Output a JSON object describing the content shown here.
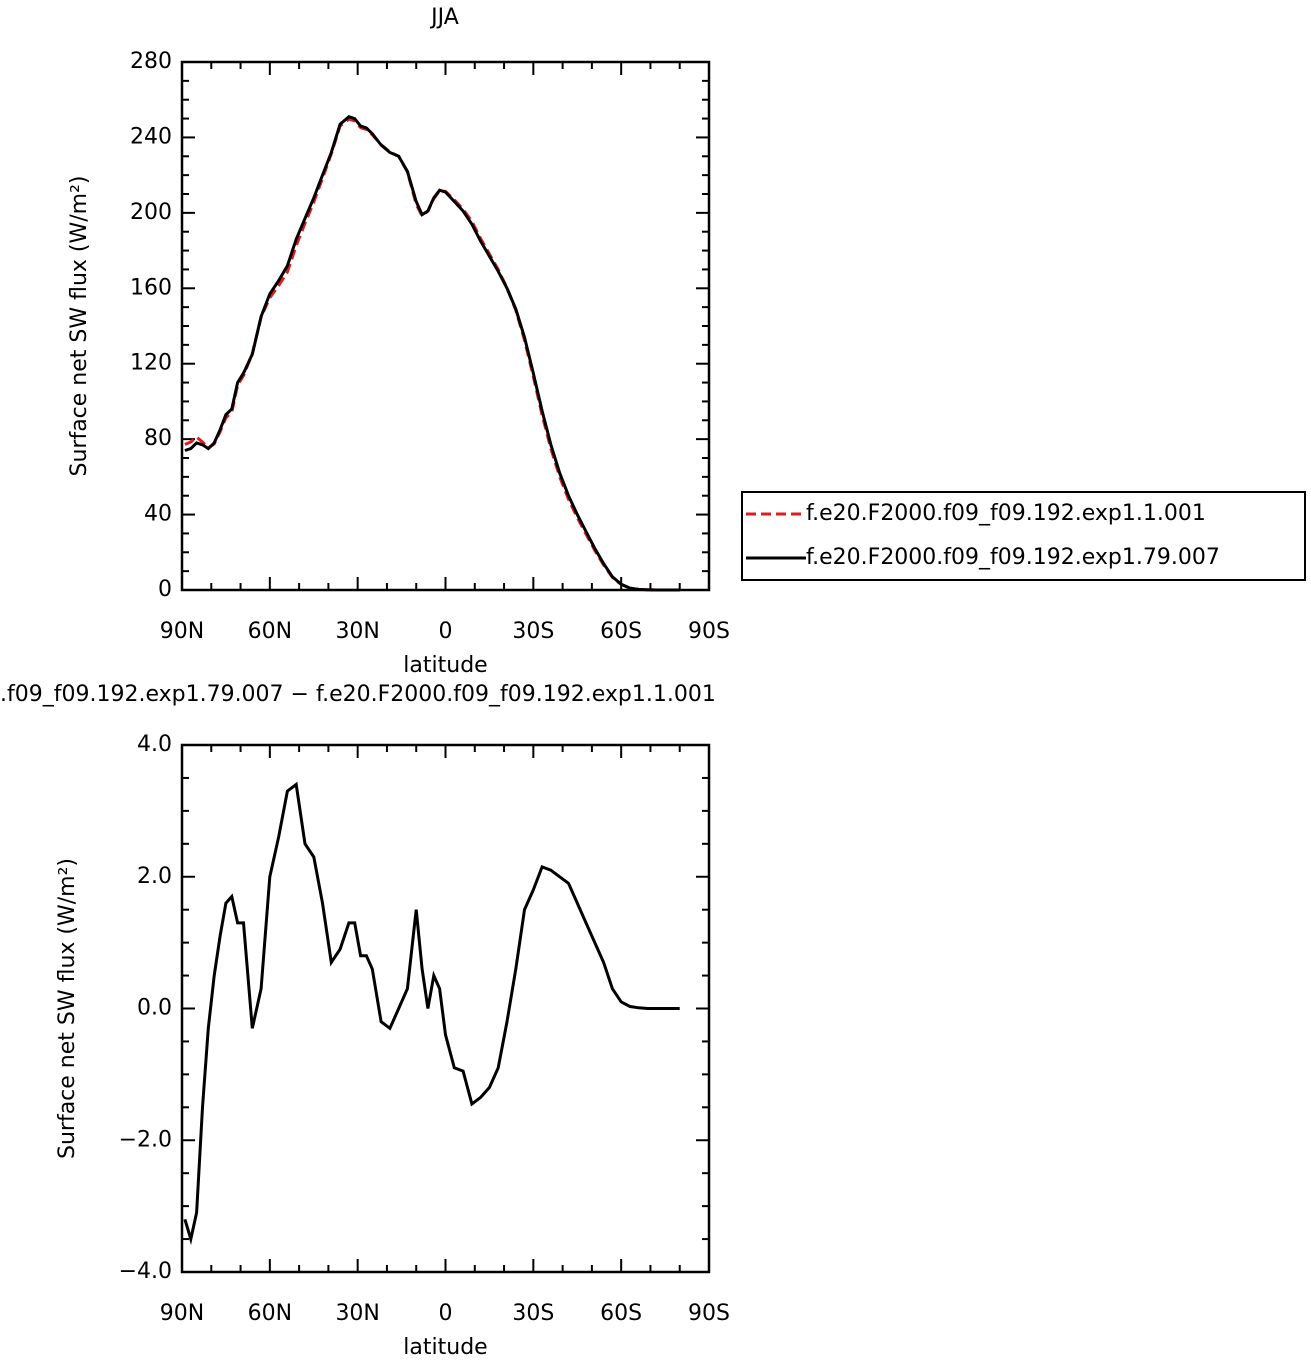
{
  "chart_data": [
    {
      "type": "line",
      "title": "JJA",
      "xlabel": "latitude",
      "ylabel": "Surface net SW flux (W/m²)",
      "x": [
        89,
        87,
        85,
        83,
        81,
        79,
        77,
        75,
        73,
        71,
        69,
        66,
        63,
        60,
        57,
        54,
        51,
        48,
        45,
        42,
        39,
        36,
        33,
        31,
        29,
        27,
        25,
        22,
        19,
        16,
        13,
        10,
        8,
        6,
        4,
        2,
        0,
        -3,
        -6,
        -9,
        -12,
        -15,
        -18,
        -21,
        -24,
        -27,
        -30,
        -33,
        -36,
        -39,
        -42,
        -45,
        -48,
        -51,
        -54,
        -57,
        -60,
        -63,
        -66,
        -69,
        -72,
        -75,
        -78,
        -80
      ],
      "series": [
        {
          "name": "f.e20.F2000.f09_f09.192.exp1.1.001",
          "color": "#e41a1c",
          "dash": true,
          "values": [
            77.2,
            78.5,
            81.1,
            78.5,
            75.3,
            77.5,
            83.9,
            91.4,
            94.3,
            108.7,
            113.7,
            125.3,
            144.7,
            155,
            161.4,
            168.7,
            182.6,
            194.5,
            205.7,
            218.4,
            231.3,
            246.1,
            249.7,
            248.7,
            245.2,
            244.2,
            241.4,
            236.2,
            232.3,
            230,
            221.7,
            204.5,
            198.4,
            201,
            207.5,
            211.7,
            211.4,
            206.9,
            201.95,
            195.45,
            186.35,
            178.2,
            169.9,
            160.2,
            148.4,
            132.5,
            113.2,
            92.85,
            74.9,
            60,
            48.1,
            38.4,
            29.7,
            21,
            13.3,
            6.7,
            2.9,
            0.97,
            0.29,
            0.1,
            0,
            0,
            0,
            0
          ]
        },
        {
          "name": "f.e20.F2000.f09_f09.192.exp1.79.007",
          "color": "#000000",
          "dash": false,
          "values": [
            74,
            75,
            78,
            77,
            75,
            78,
            85,
            93,
            96,
            110,
            115,
            125,
            145,
            157,
            164,
            172,
            186,
            197,
            208,
            220,
            232,
            247,
            251,
            250,
            246,
            245,
            242,
            236,
            232,
            230,
            222,
            206,
            199,
            201,
            208,
            212,
            211,
            206,
            201,
            194,
            185,
            177,
            169,
            160,
            149,
            134,
            115,
            95,
            77,
            62,
            50,
            40,
            31,
            22,
            14,
            7,
            3,
            1,
            0.3,
            0.1,
            0,
            0,
            0,
            0
          ]
        }
      ],
      "xlim": [
        90,
        -90
      ],
      "xticks": [
        {
          "value": 90,
          "label": "90N"
        },
        {
          "value": 60,
          "label": "60N"
        },
        {
          "value": 30,
          "label": "30N"
        },
        0,
        {
          "value": -30,
          "label": "30S"
        },
        {
          "value": -60,
          "label": "60S"
        },
        {
          "value": -90,
          "label": "90S"
        }
      ],
      "ylim": [
        0,
        280
      ],
      "yticks": [
        0,
        40,
        80,
        120,
        160,
        200,
        240,
        280
      ],
      "legend": "right"
    },
    {
      "type": "line",
      "title": ".f09_f09.192.exp1.79.007 − f.e20.F2000.f09_f09.192.exp1.1.001",
      "xlabel": "latitude",
      "ylabel": "Surface net SW flux (W/m²)",
      "x": [
        89,
        87,
        85,
        83,
        81,
        79,
        77,
        75,
        73,
        71,
        69,
        66,
        63,
        60,
        57,
        54,
        51,
        48,
        45,
        42,
        39,
        36,
        33,
        31,
        29,
        27,
        25,
        22,
        19,
        16,
        13,
        10,
        8,
        6,
        4,
        2,
        0,
        -3,
        -6,
        -9,
        -12,
        -15,
        -18,
        -21,
        -24,
        -27,
        -30,
        -33,
        -36,
        -39,
        -42,
        -45,
        -48,
        -51,
        -54,
        -57,
        -60,
        -63,
        -66,
        -69,
        -72,
        -75,
        -78,
        -80
      ],
      "color": "#000000",
      "values": [
        -3.2,
        -3.5,
        -3.1,
        -1.5,
        -0.3,
        0.5,
        1.1,
        1.6,
        1.7,
        1.3,
        1.3,
        -0.3,
        0.3,
        2.0,
        2.6,
        3.3,
        3.4,
        2.5,
        2.3,
        1.6,
        0.7,
        0.9,
        1.3,
        1.3,
        0.8,
        0.8,
        0.6,
        -0.2,
        -0.3,
        0.0,
        0.3,
        1.5,
        0.6,
        0.0,
        0.5,
        0.3,
        -0.4,
        -0.9,
        -0.95,
        -1.45,
        -1.35,
        -1.2,
        -0.9,
        -0.2,
        0.6,
        1.5,
        1.8,
        2.15,
        2.1,
        2.0,
        1.9,
        1.6,
        1.3,
        1.0,
        0.7,
        0.3,
        0.1,
        0.03,
        0.01,
        0,
        0,
        0,
        0,
        0
      ],
      "xlim": [
        90,
        -90
      ],
      "xticks": [
        {
          "value": 90,
          "label": "90N"
        },
        {
          "value": 60,
          "label": "60N"
        },
        {
          "value": 30,
          "label": "30N"
        },
        0,
        {
          "value": -30,
          "label": "30S"
        },
        {
          "value": -60,
          "label": "60S"
        },
        {
          "value": -90,
          "label": "90S"
        }
      ],
      "ylim": [
        -4,
        4
      ],
      "yticks": [
        {
          "value": -4,
          "label": "−4.0"
        },
        {
          "value": -2,
          "label": "−2.0"
        },
        {
          "value": 0,
          "label": "0.0"
        },
        {
          "value": 2,
          "label": "2.0"
        },
        {
          "value": 4,
          "label": "4.0"
        }
      ]
    }
  ]
}
